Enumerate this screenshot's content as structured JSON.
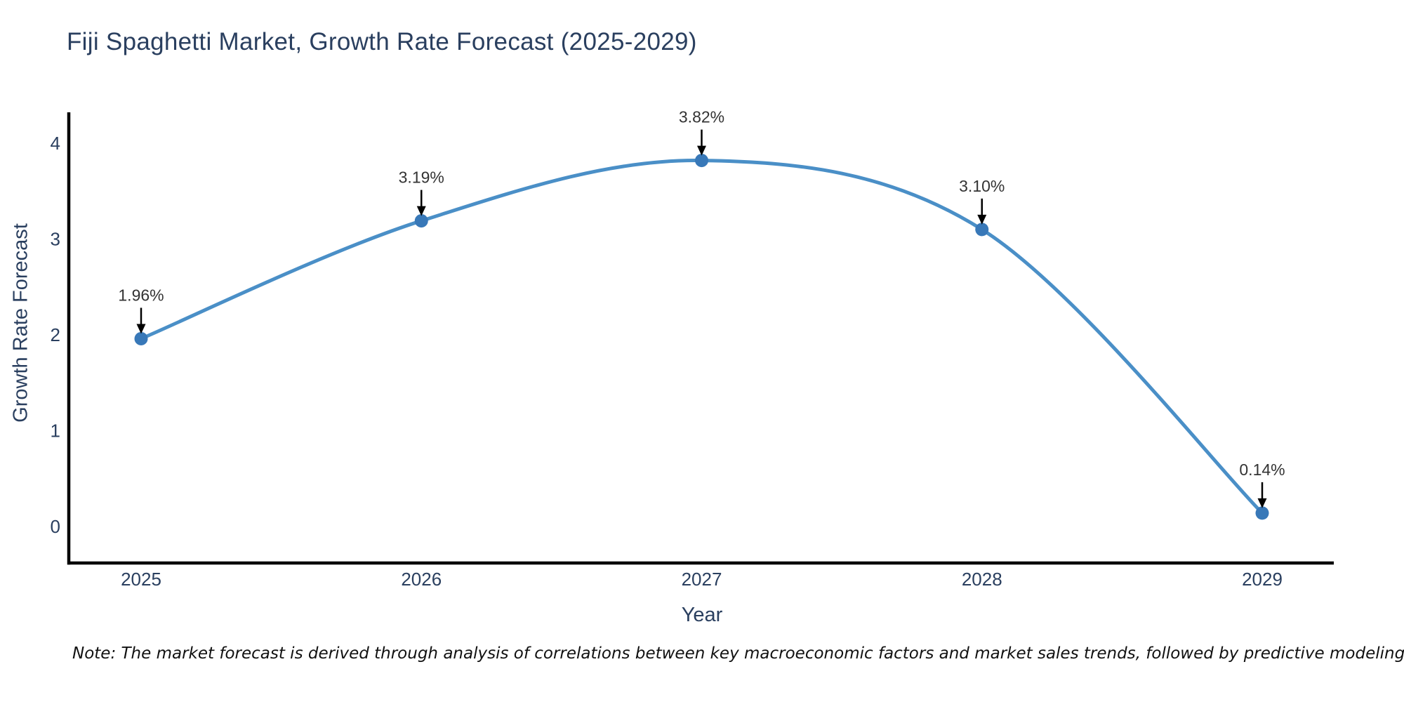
{
  "chart_data": {
    "type": "line",
    "title": "Fiji Spaghetti Market, Growth Rate Forecast (2025-2029)",
    "xlabel": "Year",
    "ylabel": "Growth Rate Forecast",
    "x": [
      2025,
      2026,
      2027,
      2028,
      2029
    ],
    "x_tick_labels": [
      "2025",
      "2026",
      "2027",
      "2028",
      "2029"
    ],
    "series": [
      {
        "name": "Growth Rate Forecast",
        "values": [
          1.96,
          3.19,
          3.82,
          3.1,
          0.14
        ],
        "point_labels": [
          "1.96%",
          "3.19%",
          "3.82%",
          "3.10%",
          "0.14%"
        ]
      }
    ],
    "y_ticks": [
      0,
      1,
      2,
      3,
      4
    ],
    "ylim": [
      0,
      4.33
    ],
    "xlim": [
      2025,
      2029
    ],
    "grid": false,
    "legend": "none",
    "line_shape": "spline",
    "annotation_arrows": true,
    "colors": {
      "line": "#4a8fc7",
      "marker": "#3878b8",
      "axis": "#000000",
      "tick_label": "#2a3f5f",
      "title": "#2a3f5f",
      "annotation_text": "#333333",
      "arrow": "#000000",
      "note_text": "#111111",
      "background": "#ffffff"
    },
    "note": "Note: The market forecast is derived through analysis of correlations between key macroeconomic factors and market sales trends, followed by predictive modeling to project future sales."
  }
}
